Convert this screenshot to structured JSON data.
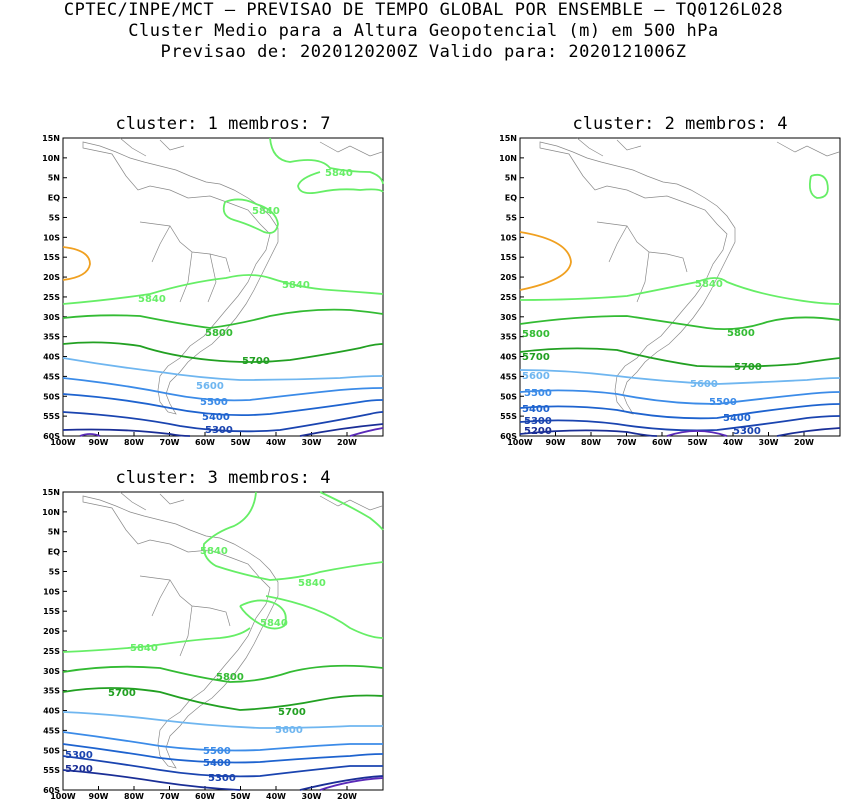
{
  "header": {
    "line1": "CPTEC/INPE/MCT – PREVISAO DE TEMPO GLOBAL POR ENSEMBLE – TQ0126L028",
    "line2": "Cluster Medio para a Altura Geopotencial (m) em 500 hPa",
    "line3": "Previsao de: 2020120200Z    Valido para: 2020121006Z"
  },
  "lat_labels": [
    "15N",
    "10N",
    "5N",
    "EQ",
    "5S",
    "10S",
    "15S",
    "20S",
    "25S",
    "30S",
    "35S",
    "40S",
    "45S",
    "50S",
    "55S",
    "60S"
  ],
  "lon_labels": [
    "100W",
    "90W",
    "80W",
    "70W",
    "60W",
    "50W",
    "40W",
    "30W",
    "20W"
  ],
  "contour_colors": {
    "5840": "#66ee66",
    "5800": "#33bb33",
    "5700": "#22a022",
    "5600": "#6fb6f0",
    "5500": "#3b8be8",
    "5400": "#1e63cf",
    "5300": "#1a44b0",
    "5200": "#1a2e96",
    "5100": "#5a2ab8",
    "high": "#f0a020"
  },
  "panels": [
    {
      "title": "cluster: 1   membros: 7",
      "labels": [
        "5840",
        "5840",
        "5840",
        "5840",
        "5800",
        "5700",
        "5600",
        "5500",
        "5400",
        "5300"
      ]
    },
    {
      "title": "cluster: 2   membros: 4",
      "labels": [
        "5840",
        "5800",
        "5800",
        "5700",
        "5700",
        "5600",
        "5600",
        "5500",
        "5500",
        "5400",
        "5400",
        "5300",
        "5300",
        "5200"
      ]
    },
    {
      "title": "cluster: 3   membros: 4",
      "labels": [
        "5840",
        "5840",
        "5840",
        "5840",
        "5800",
        "5700",
        "5700",
        "5600",
        "5500",
        "5400",
        "5300",
        "5300",
        "5200"
      ]
    }
  ]
}
